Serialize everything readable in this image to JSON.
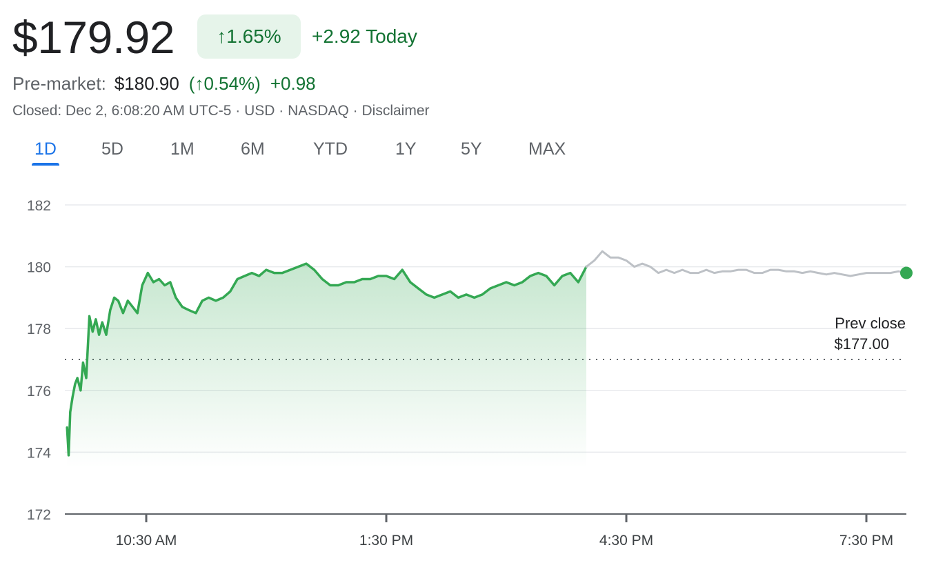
{
  "header": {
    "price": "$179.92",
    "change_pct": "↑1.65%",
    "change_today": "+2.92 Today",
    "premarket_label": "Pre-market:",
    "premarket_price": "$180.90",
    "premarket_pct": "(↑0.54%)",
    "premarket_change": "+0.98",
    "closed_info": "Closed: Dec 2, 6:08:20 AM UTC-5 · USD · NASDAQ · Disclaimer"
  },
  "tabs": [
    {
      "label": "1D",
      "active": true
    },
    {
      "label": "5D",
      "active": false
    },
    {
      "label": "1M",
      "active": false
    },
    {
      "label": "6M",
      "active": false
    },
    {
      "label": "YTD",
      "active": false
    },
    {
      "label": "1Y",
      "active": false
    },
    {
      "label": "5Y",
      "active": false
    },
    {
      "label": "MAX",
      "active": false
    }
  ],
  "colors": {
    "positive": "#34a853",
    "positive_text": "#137333",
    "after_hours": "#bdc1c6",
    "accent": "#1a73e8"
  },
  "chart_data": {
    "type": "line",
    "ylim": [
      172,
      182
    ],
    "yticks": [
      182,
      180,
      178,
      176,
      174,
      172
    ],
    "x_unit": "hours",
    "xlim": [
      9.5,
      20
    ],
    "xticks": [
      {
        "label": "10:30 AM",
        "value": 10.5
      },
      {
        "label": "1:30 PM",
        "value": 13.5
      },
      {
        "label": "4:30 PM",
        "value": 16.5
      },
      {
        "label": "7:30 PM",
        "value": 19.5
      }
    ],
    "prev_close": 177.0,
    "prev_close_label_line1": "Prev close",
    "prev_close_label_line2": "$177.00",
    "series": [
      {
        "session": "regular",
        "x": [
          9.51,
          9.53,
          9.55,
          9.58,
          9.61,
          9.64,
          9.68,
          9.71,
          9.75,
          9.79,
          9.83,
          9.87,
          9.91,
          9.95,
          10.0,
          10.05,
          10.1,
          10.15,
          10.21,
          10.27,
          10.33,
          10.39,
          10.45,
          10.52,
          10.59,
          10.66,
          10.73,
          10.8,
          10.87,
          10.95,
          11.03,
          11.12,
          11.2,
          11.28,
          11.37,
          11.46,
          11.55,
          11.64,
          11.73,
          11.82,
          11.91,
          12.0,
          12.1,
          12.2,
          12.3,
          12.4,
          12.5,
          12.6,
          12.7,
          12.8,
          12.9,
          13.0,
          13.1,
          13.2,
          13.3,
          13.4,
          13.5,
          13.6,
          13.7,
          13.8,
          13.9,
          14.0,
          14.1,
          14.2,
          14.3,
          14.4,
          14.5,
          14.6,
          14.7,
          14.8,
          14.9,
          15.0,
          15.1,
          15.2,
          15.3,
          15.4,
          15.5,
          15.6,
          15.7,
          15.8,
          15.9,
          16.0
        ],
        "y": [
          174.8,
          173.9,
          175.3,
          175.8,
          176.2,
          176.4,
          176.0,
          176.9,
          176.4,
          178.4,
          177.9,
          178.3,
          177.8,
          178.2,
          177.8,
          178.6,
          179.0,
          178.9,
          178.5,
          178.9,
          178.7,
          178.5,
          179.4,
          179.8,
          179.5,
          179.6,
          179.4,
          179.5,
          179.0,
          178.7,
          178.6,
          178.5,
          178.9,
          179.0,
          178.9,
          179.0,
          179.2,
          179.6,
          179.7,
          179.8,
          179.7,
          179.9,
          179.8,
          179.8,
          179.9,
          180.0,
          180.1,
          179.9,
          179.6,
          179.4,
          179.4,
          179.5,
          179.5,
          179.6,
          179.6,
          179.7,
          179.7,
          179.6,
          179.9,
          179.5,
          179.3,
          179.1,
          179.0,
          179.1,
          179.2,
          179.0,
          179.1,
          179.0,
          179.1,
          179.3,
          179.4,
          179.5,
          179.4,
          179.5,
          179.7,
          179.8,
          179.7,
          179.4,
          179.7,
          179.8,
          179.5,
          180.0
        ]
      },
      {
        "session": "after-hours",
        "x": [
          16.0,
          16.1,
          16.2,
          16.3,
          16.4,
          16.5,
          16.6,
          16.7,
          16.8,
          16.9,
          17.0,
          17.1,
          17.2,
          17.3,
          17.4,
          17.5,
          17.6,
          17.7,
          17.8,
          17.9,
          18.0,
          18.1,
          18.2,
          18.3,
          18.4,
          18.5,
          18.6,
          18.7,
          18.8,
          18.9,
          19.0,
          19.1,
          19.2,
          19.3,
          19.4,
          19.5,
          19.6,
          19.7,
          19.8,
          19.9,
          20.0
        ],
        "y": [
          180.0,
          180.2,
          180.5,
          180.3,
          180.3,
          180.2,
          180.0,
          180.1,
          180.0,
          179.8,
          179.9,
          179.8,
          179.9,
          179.8,
          179.8,
          179.9,
          179.8,
          179.85,
          179.85,
          179.9,
          179.9,
          179.8,
          179.8,
          179.9,
          179.9,
          179.85,
          179.85,
          179.8,
          179.85,
          179.8,
          179.75,
          179.8,
          179.75,
          179.7,
          179.75,
          179.8,
          179.8,
          179.8,
          179.8,
          179.85,
          179.8
        ]
      }
    ]
  }
}
